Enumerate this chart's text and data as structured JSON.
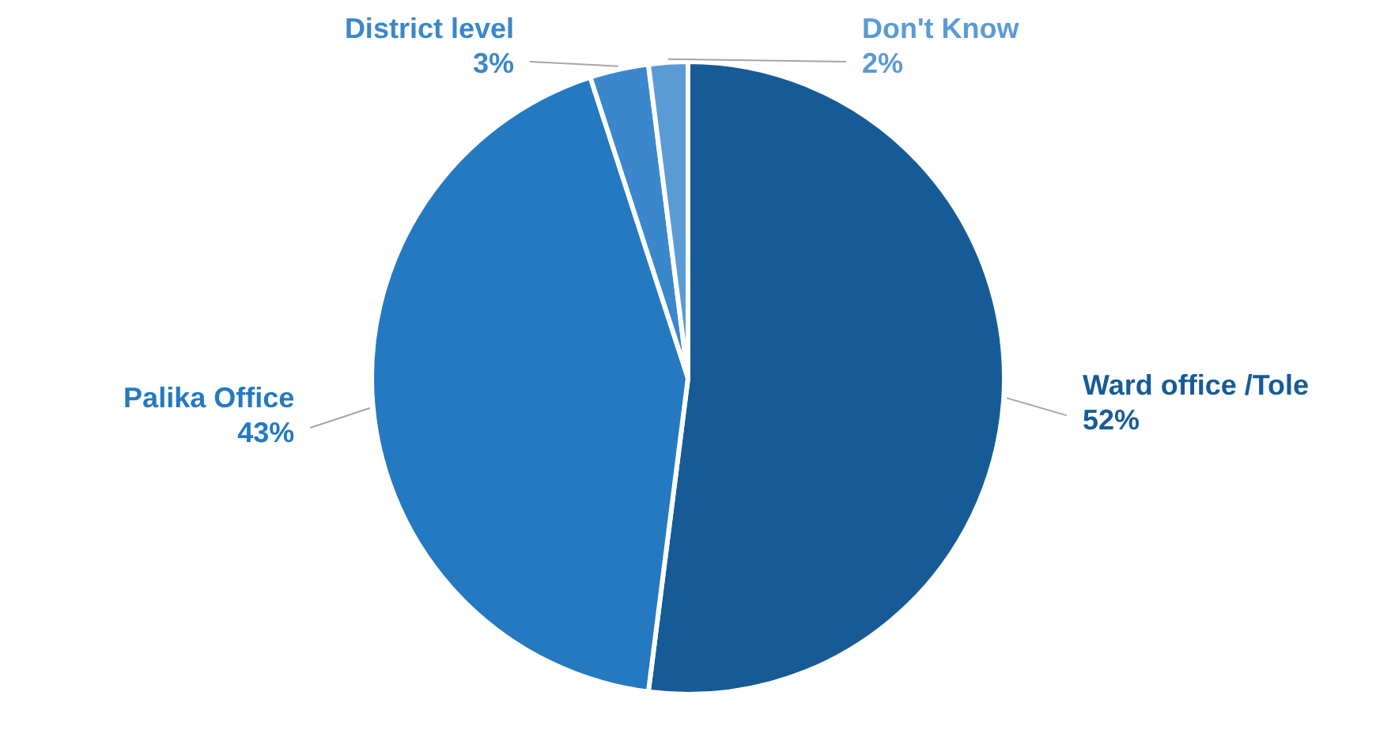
{
  "chart_data": {
    "type": "pie",
    "categories": [
      "Ward office /Tole",
      "Palika Office",
      "District level",
      "Don't Know"
    ],
    "values": [
      52,
      43,
      3,
      2
    ],
    "value_labels": [
      "52%",
      "43%",
      "3%",
      "2%"
    ],
    "colors": [
      "#175b96",
      "#2479c1",
      "#3a87cb",
      "#5b9bd5"
    ]
  }
}
